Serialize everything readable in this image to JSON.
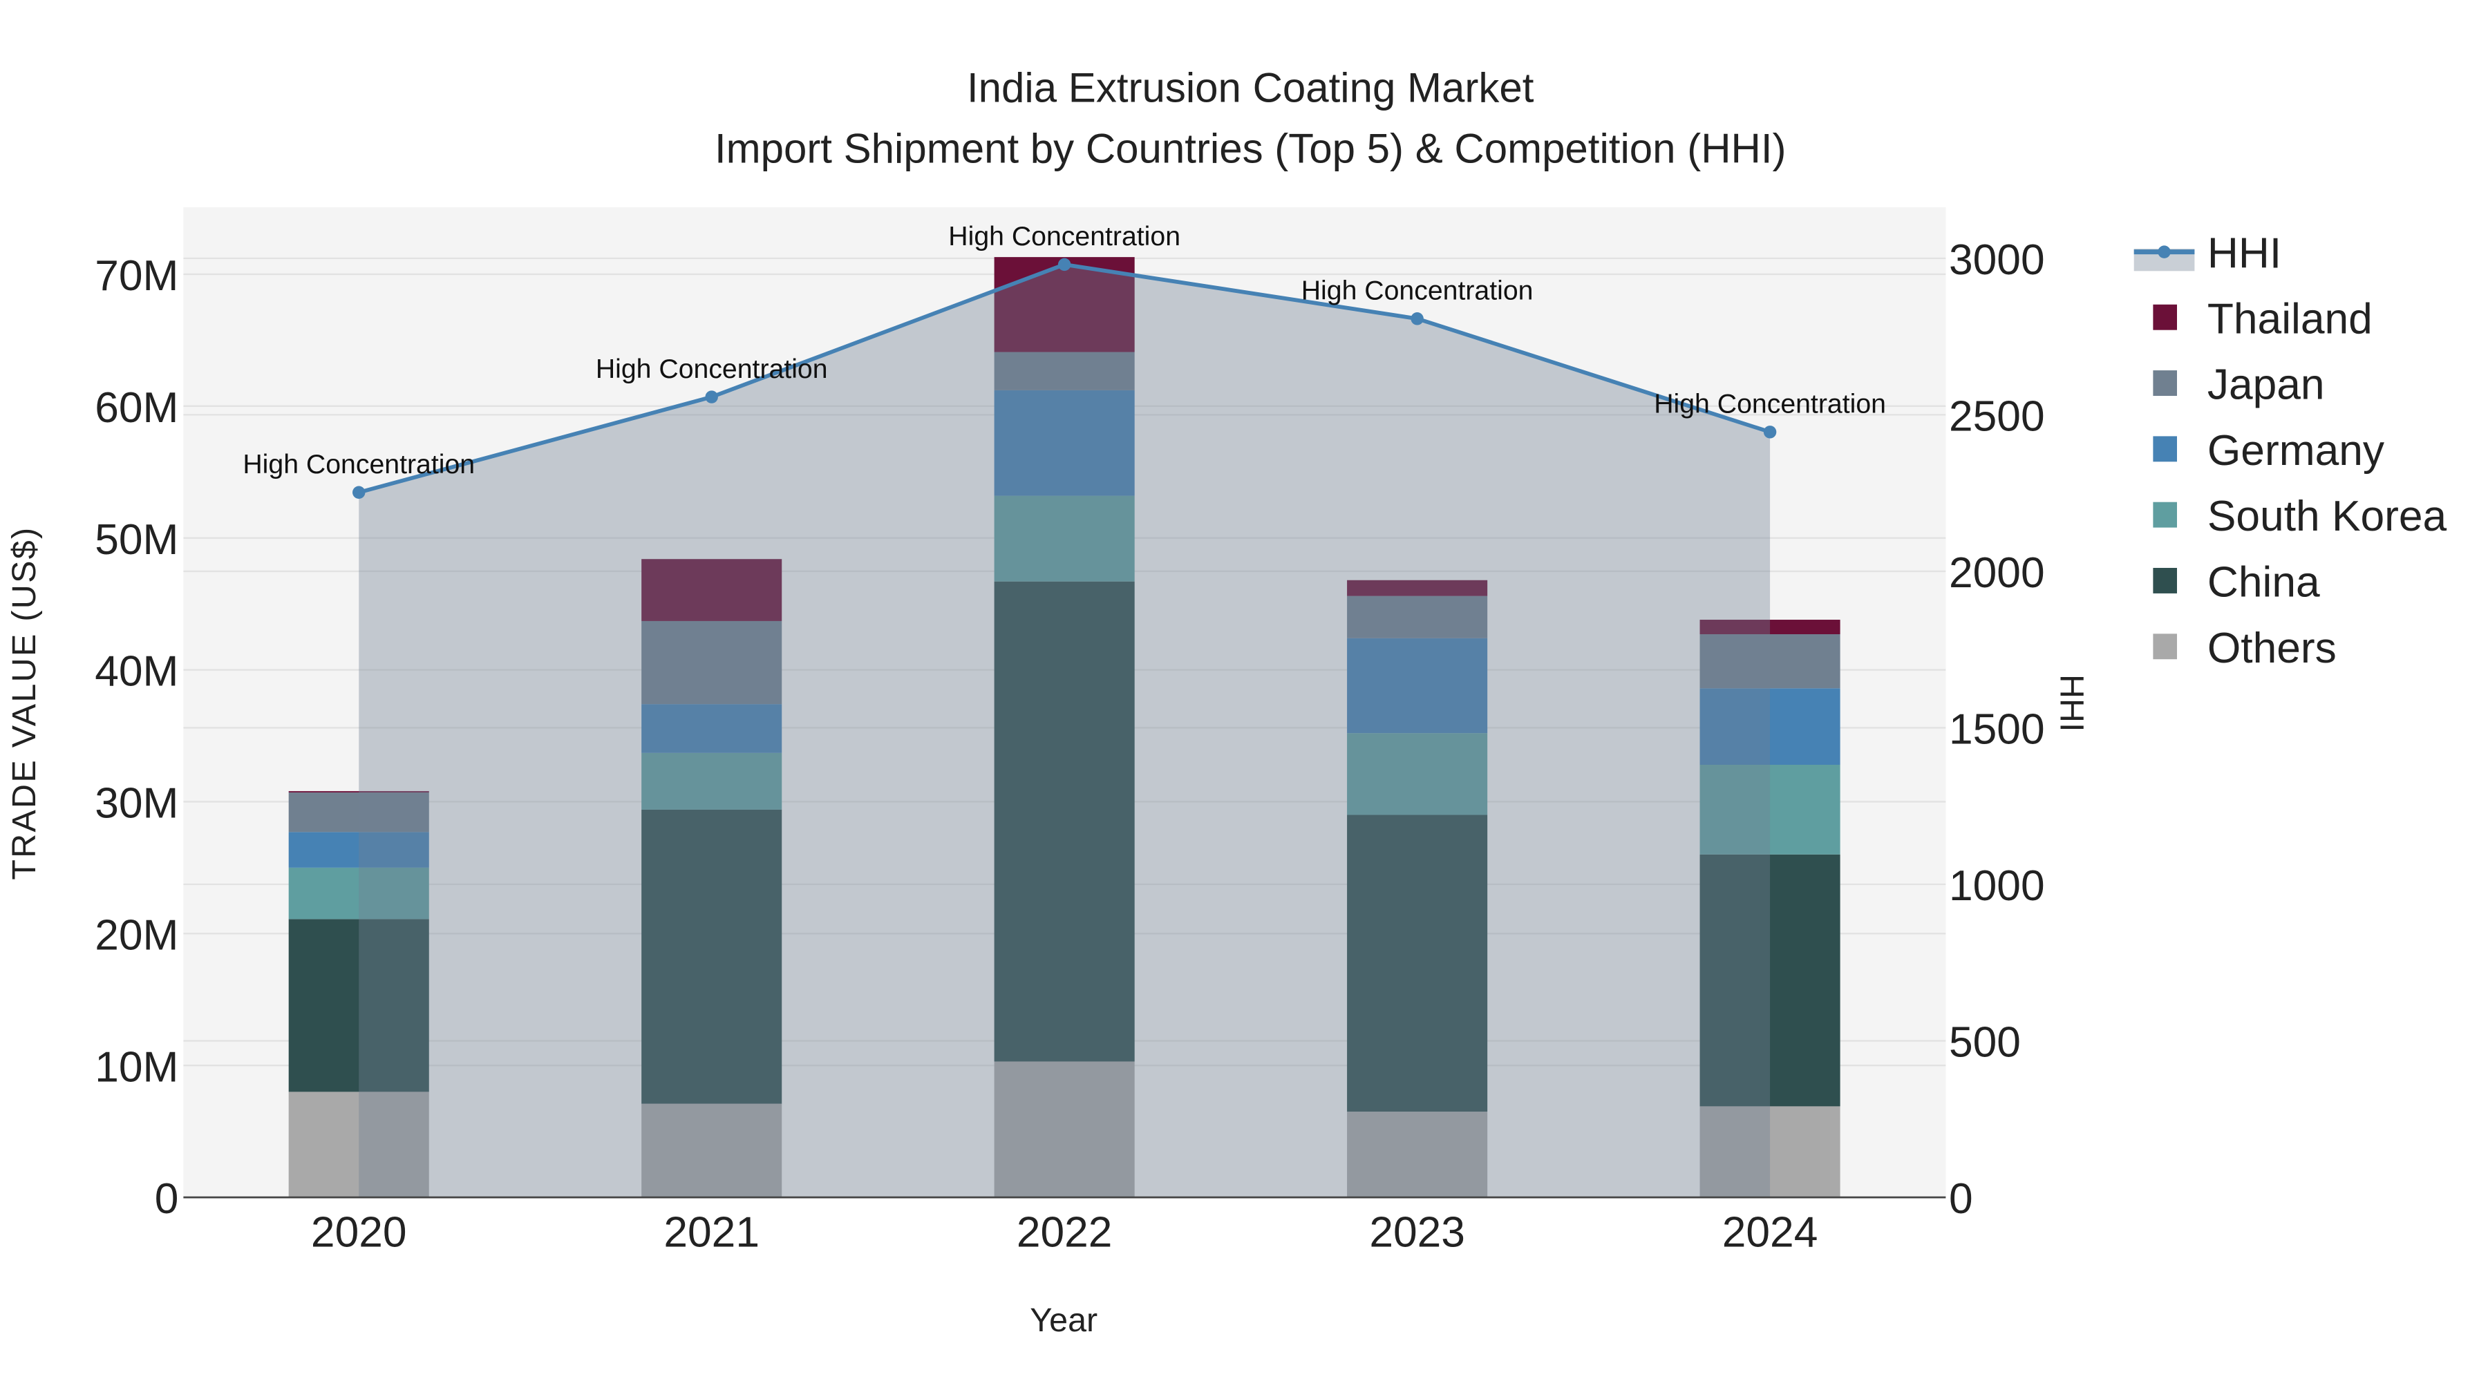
{
  "chart_data": {
    "type": "bar",
    "title": "India Extrusion Coating Market",
    "subtitle": "Import Shipment by Countries (Top 5) & Competition (HHI)",
    "xlabel": "Year",
    "ylabel": "TRADE VALUE (US$)",
    "y2label": "HHI",
    "categories": [
      "2020",
      "2021",
      "2022",
      "2023",
      "2024"
    ],
    "ylim": [
      0,
      74
    ],
    "y_unit": "M",
    "y_ticks": [
      "0",
      "10M",
      "20M",
      "30M",
      "40M",
      "50M",
      "60M",
      "70M"
    ],
    "y2lim": [
      0,
      3150
    ],
    "y2_ticks": [
      "0",
      "500",
      "1000",
      "1500",
      "2000",
      "2500",
      "3000"
    ],
    "series": [
      {
        "name": "Others",
        "color": "#a9a9a9",
        "values": [
          8.0,
          7.1,
          10.3,
          6.5,
          6.9
        ]
      },
      {
        "name": "China",
        "color": "#2f4f4f",
        "values": [
          13.1,
          22.3,
          36.4,
          22.5,
          19.1
        ]
      },
      {
        "name": "South Korea",
        "color": "#5f9ea0",
        "values": [
          3.9,
          4.3,
          6.5,
          6.2,
          6.8
        ]
      },
      {
        "name": "Germany",
        "color": "#4682b4",
        "values": [
          2.7,
          3.7,
          8.0,
          7.2,
          5.8
        ]
      },
      {
        "name": "Japan",
        "color": "#708090",
        "values": [
          3.0,
          6.3,
          2.9,
          3.2,
          4.1
        ]
      },
      {
        "name": "Thailand",
        "color": "#6b1038",
        "values": [
          0.1,
          4.7,
          7.2,
          1.2,
          1.1
        ]
      }
    ],
    "hhi": {
      "name": "HHI",
      "color": "#4682b4",
      "values": [
        2252,
        2557,
        2980,
        2807,
        2445
      ],
      "annotations": [
        "High Concentration",
        "High Concentration",
        "High Concentration",
        "High Concentration",
        "High Concentration"
      ]
    },
    "legend": {
      "placement": "right",
      "entries": [
        "HHI",
        "Thailand",
        "Japan",
        "Germany",
        "South Korea",
        "China",
        "Others"
      ]
    },
    "grid": true
  }
}
